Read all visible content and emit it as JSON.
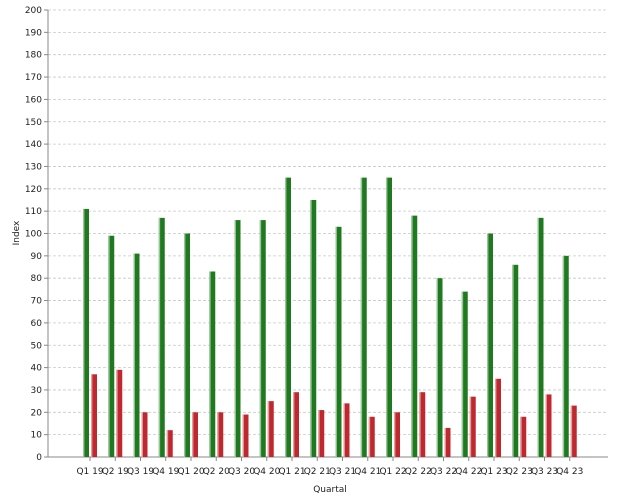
{
  "chart_data": {
    "type": "bar",
    "title": "",
    "xlabel": "Quartal",
    "ylabel": "Index",
    "ylim": [
      0,
      200
    ],
    "y_ticks": [
      0,
      10,
      20,
      30,
      40,
      50,
      60,
      70,
      80,
      90,
      100,
      110,
      120,
      130,
      140,
      150,
      160,
      170,
      180,
      190,
      200
    ],
    "grid": true,
    "legend": "none",
    "categories": [
      "Q1 19",
      "Q2 19",
      "Q3 19",
      "Q4 19",
      "Q1 20",
      "Q2 20",
      "Q3 20",
      "Q4 20",
      "Q1 21",
      "Q2 21",
      "Q3 21",
      "Q4 21",
      "Q1 22",
      "Q2 22",
      "Q3 22",
      "Q4 22",
      "Q1 23",
      "Q2 23",
      "Q3 23",
      "Q4 23"
    ],
    "series": [
      {
        "color": "#1f7a1f",
        "values": [
          111,
          99,
          91,
          107,
          100,
          83,
          106,
          106,
          125,
          115,
          103,
          125,
          125,
          108,
          80,
          74,
          100,
          86,
          107,
          90
        ]
      },
      {
        "color": "#c0282f",
        "values": [
          37,
          39,
          20,
          12,
          20,
          20,
          19,
          25,
          29,
          21,
          24,
          18,
          20,
          29,
          13,
          27,
          35,
          18,
          28,
          23
        ]
      }
    ]
  }
}
